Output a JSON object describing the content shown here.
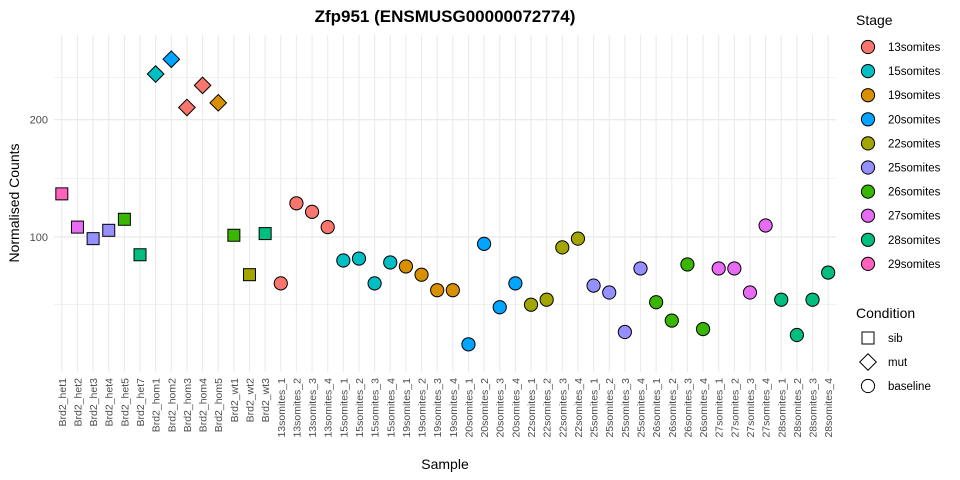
{
  "chart_data": {
    "type": "scatter",
    "title": "Zfp951 (ENSMUSG00000072774)",
    "xlabel": "Sample",
    "ylabel": "Normalised Counts",
    "y_scale": "log10",
    "y_ticks": [
      100,
      200
    ],
    "y_tick_labels": [
      "100",
      "200"
    ],
    "ylim": [
      45,
      330
    ],
    "grid": true,
    "legend_placement": "right",
    "legend_stage_title": "Stage",
    "legend_condition_title": "Condition",
    "stages": [
      {
        "name": "13somites",
        "color": "#F8766D"
      },
      {
        "name": "15somites",
        "color": "#00BFC4"
      },
      {
        "name": "19somites",
        "color": "#D89000"
      },
      {
        "name": "20somites",
        "color": "#00A5FF"
      },
      {
        "name": "22somites",
        "color": "#A3A500"
      },
      {
        "name": "25somites",
        "color": "#9590FF"
      },
      {
        "name": "26somites",
        "color": "#39B600"
      },
      {
        "name": "27somites",
        "color": "#E76BF3"
      },
      {
        "name": "28somites",
        "color": "#00BF7D"
      },
      {
        "name": "29somites",
        "color": "#FF62BC"
      }
    ],
    "conditions": [
      {
        "name": "sib",
        "shape": "square"
      },
      {
        "name": "mut",
        "shape": "diamond"
      },
      {
        "name": "baseline",
        "shape": "circle"
      }
    ],
    "points": [
      {
        "sample": "Brd2_het1",
        "y": 129,
        "stage": "29somites",
        "condition": "sib"
      },
      {
        "sample": "Brd2_het2",
        "y": 106,
        "stage": "27somites",
        "condition": "sib"
      },
      {
        "sample": "Brd2_het3",
        "y": 99,
        "stage": "25somites",
        "condition": "sib"
      },
      {
        "sample": "Brd2_het4",
        "y": 104,
        "stage": "25somites",
        "condition": "sib"
      },
      {
        "sample": "Brd2_het5",
        "y": 111,
        "stage": "26somites",
        "condition": "sib"
      },
      {
        "sample": "Brd2_het7",
        "y": 90,
        "stage": "28somites",
        "condition": "sib"
      },
      {
        "sample": "Brd2_hom1",
        "y": 262,
        "stage": "15somites",
        "condition": "mut"
      },
      {
        "sample": "Brd2_hom2",
        "y": 286,
        "stage": "20somites",
        "condition": "mut"
      },
      {
        "sample": "Brd2_hom3",
        "y": 215,
        "stage": "13somites",
        "condition": "mut"
      },
      {
        "sample": "Brd2_hom4",
        "y": 245,
        "stage": "13somites",
        "condition": "mut"
      },
      {
        "sample": "Brd2_hom5",
        "y": 221,
        "stage": "19somites",
        "condition": "mut"
      },
      {
        "sample": "Brd2_wt1",
        "y": 101,
        "stage": "26somites",
        "condition": "sib"
      },
      {
        "sample": "Brd2_wt2",
        "y": 80,
        "stage": "22somites",
        "condition": "sib"
      },
      {
        "sample": "Brd2_wt3",
        "y": 102,
        "stage": "28somites",
        "condition": "sib"
      },
      {
        "sample": "13somites_1",
        "y": 76,
        "stage": "13somites",
        "condition": "baseline"
      },
      {
        "sample": "13somites_2",
        "y": 122,
        "stage": "13somites",
        "condition": "baseline"
      },
      {
        "sample": "13somites_3",
        "y": 116,
        "stage": "13somites",
        "condition": "baseline"
      },
      {
        "sample": "13somites_4",
        "y": 106,
        "stage": "13somites",
        "condition": "baseline"
      },
      {
        "sample": "15somites_1",
        "y": 87,
        "stage": "15somites",
        "condition": "baseline"
      },
      {
        "sample": "15somites_2",
        "y": 88,
        "stage": "15somites",
        "condition": "baseline"
      },
      {
        "sample": "15somites_3",
        "y": 76,
        "stage": "15somites",
        "condition": "baseline"
      },
      {
        "sample": "15somites_4",
        "y": 86,
        "stage": "15somites",
        "condition": "baseline"
      },
      {
        "sample": "19somites_1",
        "y": 84,
        "stage": "19somites",
        "condition": "baseline"
      },
      {
        "sample": "19somites_2",
        "y": 80,
        "stage": "19somites",
        "condition": "baseline"
      },
      {
        "sample": "19somites_3",
        "y": 73,
        "stage": "19somites",
        "condition": "baseline"
      },
      {
        "sample": "19somites_4",
        "y": 73,
        "stage": "19somites",
        "condition": "baseline"
      },
      {
        "sample": "20somites_1",
        "y": 53,
        "stage": "20somites",
        "condition": "baseline"
      },
      {
        "sample": "20somites_2",
        "y": 96,
        "stage": "20somites",
        "condition": "baseline"
      },
      {
        "sample": "20somites_3",
        "y": 66,
        "stage": "20somites",
        "condition": "baseline"
      },
      {
        "sample": "20somites_4",
        "y": 76,
        "stage": "20somites",
        "condition": "baseline"
      },
      {
        "sample": "22somites_1",
        "y": 67,
        "stage": "22somites",
        "condition": "baseline"
      },
      {
        "sample": "22somites_2",
        "y": 69,
        "stage": "22somites",
        "condition": "baseline"
      },
      {
        "sample": "22somites_3",
        "y": 94,
        "stage": "22somites",
        "condition": "baseline"
      },
      {
        "sample": "22somites_4",
        "y": 99,
        "stage": "22somites",
        "condition": "baseline"
      },
      {
        "sample": "25somites_1",
        "y": 75,
        "stage": "25somites",
        "condition": "baseline"
      },
      {
        "sample": "25somites_2",
        "y": 72,
        "stage": "25somites",
        "condition": "baseline"
      },
      {
        "sample": "25somites_3",
        "y": 57,
        "stage": "25somites",
        "condition": "baseline"
      },
      {
        "sample": "25somites_4",
        "y": 83,
        "stage": "25somites",
        "condition": "baseline"
      },
      {
        "sample": "26somites_1",
        "y": 68,
        "stage": "26somites",
        "condition": "baseline"
      },
      {
        "sample": "26somites_2",
        "y": 61,
        "stage": "26somites",
        "condition": "baseline"
      },
      {
        "sample": "26somites_3",
        "y": 85,
        "stage": "26somites",
        "condition": "baseline"
      },
      {
        "sample": "26somites_4",
        "y": 58,
        "stage": "26somites",
        "condition": "baseline"
      },
      {
        "sample": "27somites_1",
        "y": 83,
        "stage": "27somites",
        "condition": "baseline"
      },
      {
        "sample": "27somites_2",
        "y": 83,
        "stage": "27somites",
        "condition": "baseline"
      },
      {
        "sample": "27somites_3",
        "y": 72,
        "stage": "27somites",
        "condition": "baseline"
      },
      {
        "sample": "27somites_4",
        "y": 107,
        "stage": "27somites",
        "condition": "baseline"
      },
      {
        "sample": "28somites_1",
        "y": 69,
        "stage": "28somites",
        "condition": "baseline"
      },
      {
        "sample": "28somites_2",
        "y": 56,
        "stage": "28somites",
        "condition": "baseline"
      },
      {
        "sample": "28somites_3",
        "y": 69,
        "stage": "28somites",
        "condition": "baseline"
      },
      {
        "sample": "28somites_4",
        "y": 81,
        "stage": "28somites",
        "condition": "baseline"
      }
    ]
  }
}
